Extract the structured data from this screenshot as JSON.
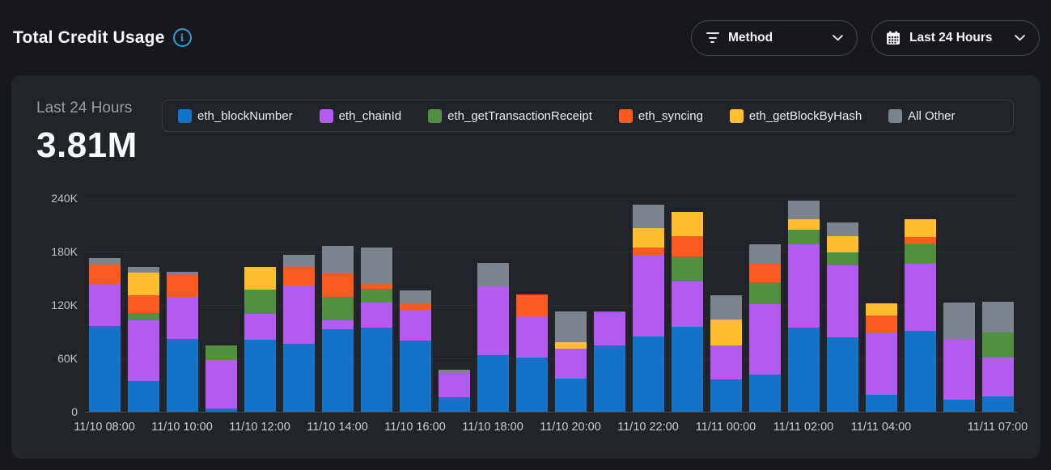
{
  "header": {
    "title": "Total Credit Usage",
    "method_filter": {
      "label": "Method"
    },
    "time_filter": {
      "label": "Last 24 Hours"
    }
  },
  "card": {
    "period_label": "Last 24 Hours",
    "total_value": "3.81M"
  },
  "colors": {
    "accent_blue": "#2b9fd9",
    "page_bg": "#17181b",
    "card_bg": "#212429"
  },
  "icons": [
    "info-icon",
    "filter-icon",
    "calendar-icon",
    "chevron-down-icon"
  ],
  "chart_data": {
    "type": "bar",
    "stacked": true,
    "title": "Total Credit Usage - Last 24 Hours",
    "unit": "credits",
    "bar_count": 24,
    "ylim": [
      0,
      240000
    ],
    "grid": true,
    "legend_position": "top",
    "yticks": [
      {
        "label": "0",
        "value": 0
      },
      {
        "label": "60K",
        "value": 60000
      },
      {
        "label": "120K",
        "value": 120000
      },
      {
        "label": "180K",
        "value": 180000
      },
      {
        "label": "240K",
        "value": 240000
      }
    ],
    "x_ticks": [
      {
        "label": "11/10 08:00",
        "pos": 0
      },
      {
        "label": "11/10 10:00",
        "pos": 2
      },
      {
        "label": "11/10 12:00",
        "pos": 4
      },
      {
        "label": "11/10 14:00",
        "pos": 6
      },
      {
        "label": "11/10 16:00",
        "pos": 8
      },
      {
        "label": "11/10 18:00",
        "pos": 10
      },
      {
        "label": "11/10 20:00",
        "pos": 12
      },
      {
        "label": "11/10 22:00",
        "pos": 14
      },
      {
        "label": "11/11 00:00",
        "pos": 16
      },
      {
        "label": "11/11 02:00",
        "pos": 18
      },
      {
        "label": "11/11 04:00",
        "pos": 20
      },
      {
        "label": "11/11 07:00",
        "pos": 23
      }
    ],
    "series": [
      {
        "name": "eth_blockNumber",
        "color": "#1273c7",
        "values": [
          96000,
          35000,
          82000,
          4000,
          81000,
          76000,
          92500,
          95000,
          80000,
          16000,
          63500,
          60500,
          37000,
          74500,
          85000,
          95500,
          36000,
          42000,
          94500,
          83500,
          19500,
          91000,
          14000,
          17000
        ]
      },
      {
        "name": "eth_chainId",
        "color": "#b55cf0",
        "values": [
          48000,
          68000,
          47000,
          54000,
          29000,
          65500,
          10000,
          28000,
          34500,
          27500,
          77500,
          46000,
          34000,
          37500,
          91000,
          50500,
          39000,
          79000,
          93500,
          81500,
          69500,
          75000,
          68000,
          44000
        ]
      },
      {
        "name": "eth_getTransactionReceipt",
        "color": "#528f41",
        "values": [
          0,
          8000,
          0,
          17000,
          27000,
          0,
          27000,
          15000,
          0,
          0,
          0,
          0,
          0,
          1000,
          0,
          29000,
          0,
          24500,
          17000,
          14000,
          0,
          22000,
          0,
          28000
        ]
      },
      {
        "name": "eth_syncing",
        "color": "#fd5a1f",
        "values": [
          21500,
          19500,
          25000,
          0,
          0,
          21000,
          26000,
          5500,
          7500,
          0,
          0,
          25000,
          0,
          0,
          8500,
          22500,
          0,
          20500,
          0,
          0,
          19000,
          8500,
          0,
          0
        ]
      },
      {
        "name": "eth_getBlockByHash",
        "color": "#ffbe2e",
        "values": [
          0,
          25500,
          0,
          0,
          26000,
          0,
          0,
          0,
          0,
          0,
          0,
          0,
          7000,
          0,
          22000,
          27000,
          28500,
          0,
          11500,
          18500,
          14000,
          20000,
          0,
          0
        ]
      },
      {
        "name": "All Other",
        "color": "#7b838d",
        "values": [
          7500,
          7000,
          3500,
          0,
          0,
          14000,
          31000,
          41500,
          14000,
          4000,
          26000,
          0,
          35000,
          0,
          26500,
          0,
          27000,
          22000,
          20500,
          15500,
          0,
          0,
          40500,
          34500
        ]
      }
    ]
  }
}
